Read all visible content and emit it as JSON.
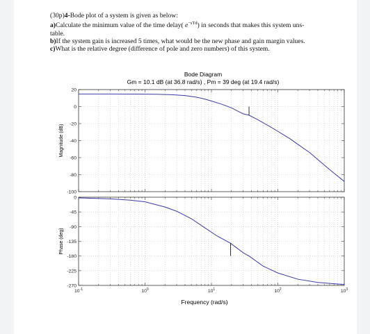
{
  "question": {
    "intro_points": "(30p)",
    "intro_number": "4-",
    "intro_text": "Bode plot of a system is given as below:",
    "a_label": "a)",
    "a_text_before": "Calculate the minimum value of the time delay(",
    "a_formula_base": "e",
    "a_formula_exp": "−sTd",
    "a_text_line1_after": ") in seconds that makes this system uns-",
    "a_text_line2": "table.",
    "b_label": "b)",
    "b_text": "If the system gain is increased 5 times, what would be the new phase and gain margin values.",
    "c_label": "c)",
    "c_text": "What is the relative degree (difference of pole and zero numbers) of this system."
  },
  "chart_data": {
    "type": "line",
    "title": "Bode Diagram",
    "subtitle": "Gm = 10.1 dB (at 36.8 rad/s) ,  Pm = 39 deg (at 19.4 rad/s)",
    "xlabel": "Frequency  (rad/s)",
    "x_scale": "log",
    "xlim": [
      0.1,
      1000
    ],
    "x_ticks": [
      {
        "base": "10",
        "exp": "-1"
      },
      {
        "base": "10",
        "exp": "0"
      },
      {
        "base": "10",
        "exp": "1"
      },
      {
        "base": "10",
        "exp": "2"
      },
      {
        "base": "10",
        "exp": "3"
      }
    ],
    "grid": true,
    "line_color": "#3a3aa8",
    "panels": [
      {
        "ylabel": "Magnitude (dB)",
        "ylim": [
          -100,
          20
        ],
        "y_ticks": [
          "20",
          "0",
          "-20",
          "-40",
          "-60",
          "-80",
          "-100"
        ],
        "series": {
          "x": [
            0.1,
            0.3,
            0.7,
            1.5,
            2.5,
            4,
            6,
            8,
            10,
            14,
            20,
            30,
            36.8,
            50,
            80,
            150,
            300,
            600,
            1000
          ],
          "values": [
            14.8,
            14.8,
            14.7,
            14.5,
            14.0,
            13.0,
            11.0,
            8.8,
            6.5,
            3.0,
            -1.5,
            -8.5,
            -10.1,
            -15.5,
            -24.5,
            -37.5,
            -54,
            -74,
            -88
          ]
        },
        "marker": {
          "x": 36.8,
          "from": -10.1,
          "to": 0
        }
      },
      {
        "ylabel": "Phase (deg)",
        "ylim": [
          -270,
          0
        ],
        "y_ticks": [
          "0",
          "-45",
          "-90",
          "-135",
          "-180",
          "-225",
          "-270"
        ],
        "series": {
          "x": [
            0.1,
            0.3,
            0.6,
            1,
            2,
            3,
            5,
            8,
            12,
            19.4,
            30,
            36.8,
            60,
            100,
            200,
            400,
            700,
            1000
          ],
          "values": [
            -2,
            -5,
            -9,
            -14,
            -30,
            -43,
            -66,
            -94,
            -118,
            -141,
            -170,
            -180,
            -211,
            -232,
            -251,
            -261,
            -265,
            -267
          ]
        },
        "marker": {
          "x": 19.4,
          "from": -141,
          "to": -180
        }
      }
    ]
  }
}
